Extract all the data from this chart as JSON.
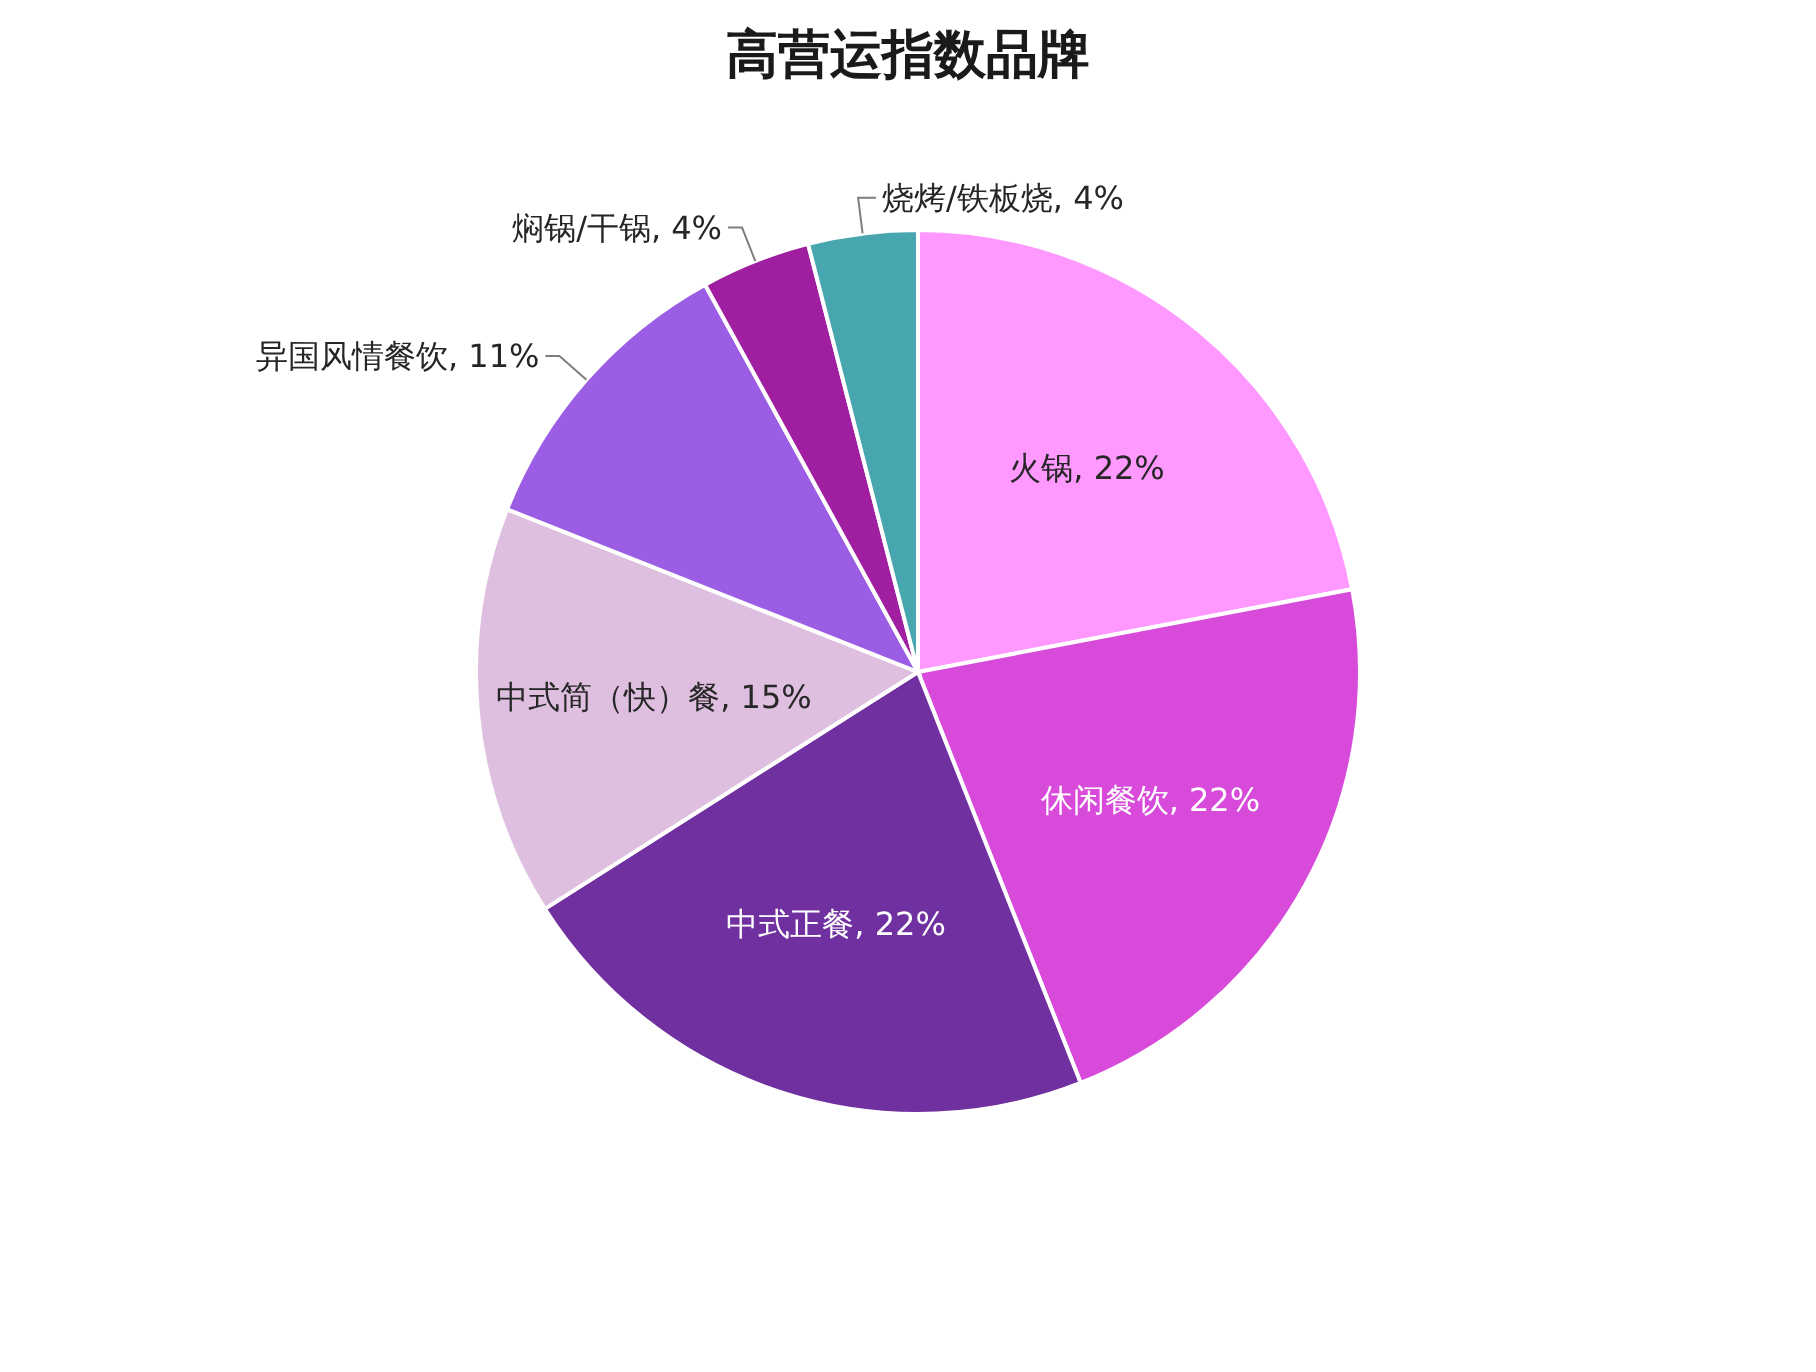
{
  "chart_data": {
    "type": "pie",
    "title": "高营运指数品牌",
    "categories": [
      "火锅",
      "休闲餐饮",
      "中式正餐",
      "中式简（快）餐",
      "异国风情餐饮",
      "焖锅/干锅",
      "烧烤/铁板烧"
    ],
    "values": [
      22,
      22,
      22,
      15,
      11,
      4,
      4
    ],
    "colors": [
      "#ff99ff",
      "#d74ada",
      "#7030a0",
      "#dfbfdf",
      "#9b5de3",
      "#a01ea0",
      "#48a6ae"
    ],
    "value_labels": [
      "22%",
      "22%",
      "22%",
      "15%",
      "11%",
      "4%",
      "4%"
    ]
  }
}
